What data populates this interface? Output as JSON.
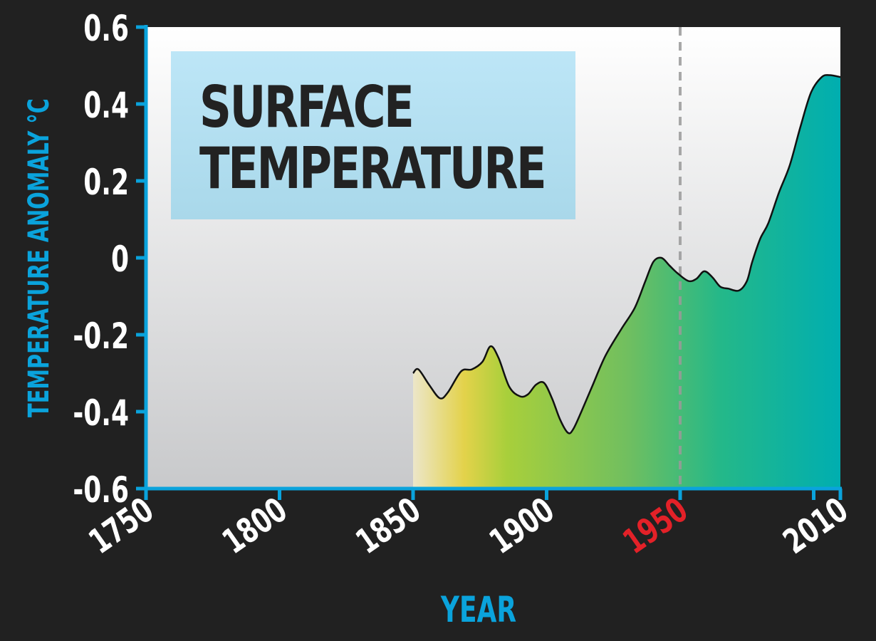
{
  "chart_data": {
    "type": "area",
    "title": [
      "SURFACE",
      "TEMPERATURE"
    ],
    "xlabel": "YEAR",
    "ylabel": "TEMPERATURE ANOMALY °C",
    "xlim": [
      1750,
      2010
    ],
    "ylim": [
      -0.6,
      0.6
    ],
    "x_ticks": [
      {
        "value": 1750,
        "label": "1750"
      },
      {
        "value": 1800,
        "label": "1800"
      },
      {
        "value": 1850,
        "label": "1850"
      },
      {
        "value": 1900,
        "label": "1900"
      },
      {
        "value": 1950,
        "label": "1950",
        "highlight": true
      },
      {
        "value": 2010,
        "label": "2010"
      }
    ],
    "x_tick_marks": [
      1750,
      1800,
      1850,
      1900,
      1950,
      2000,
      2010
    ],
    "y_ticks": [
      {
        "value": 0.6,
        "label": "0.6"
      },
      {
        "value": 0.4,
        "label": "0.4"
      },
      {
        "value": 0.2,
        "label": "0.2"
      },
      {
        "value": 0,
        "label": "0"
      },
      {
        "value": -0.2,
        "label": "-0.2"
      },
      {
        "value": -0.4,
        "label": "-0.4"
      },
      {
        "value": -0.6,
        "label": "-0.6"
      }
    ],
    "reference_line": {
      "x": 1950,
      "style": "dashed"
    },
    "series": [
      {
        "x": [
          1850,
          1852,
          1856,
          1860,
          1863,
          1868,
          1872,
          1876,
          1879,
          1882,
          1886,
          1890,
          1893,
          1896,
          1899,
          1902,
          1905,
          1908,
          1910,
          1913,
          1917,
          1922,
          1928,
          1933,
          1937,
          1940,
          1943,
          1946,
          1949,
          1953,
          1956,
          1959,
          1962,
          1965,
          1968,
          1972,
          1975,
          1977,
          1980,
          1983,
          1987,
          1991,
          1995,
          1999,
          2003,
          2006,
          2010
        ],
        "values": [
          -0.3,
          -0.29,
          -0.33,
          -0.365,
          -0.35,
          -0.295,
          -0.29,
          -0.27,
          -0.23,
          -0.26,
          -0.335,
          -0.36,
          -0.355,
          -0.33,
          -0.325,
          -0.365,
          -0.42,
          -0.455,
          -0.445,
          -0.4,
          -0.335,
          -0.255,
          -0.185,
          -0.13,
          -0.06,
          -0.01,
          0.0,
          -0.02,
          -0.04,
          -0.06,
          -0.055,
          -0.035,
          -0.05,
          -0.075,
          -0.08,
          -0.085,
          -0.06,
          -0.01,
          0.05,
          0.09,
          0.17,
          0.24,
          0.34,
          0.43,
          0.47,
          0.475,
          0.47
        ]
      }
    ],
    "colors": {
      "background": "#212121",
      "axis": "#0aa3dc",
      "tick_label": "#ffffff",
      "highlight_label": "#e32128",
      "line": "#111111",
      "fill_stops": [
        "#ece6c9",
        "#e3d24a",
        "#a8cf3b",
        "#71bf5f",
        "#24b889",
        "#00aeb0"
      ],
      "plot_bg": [
        "#ffffff",
        "#c8c9cb"
      ],
      "title_box": "#b6e1f3"
    }
  }
}
